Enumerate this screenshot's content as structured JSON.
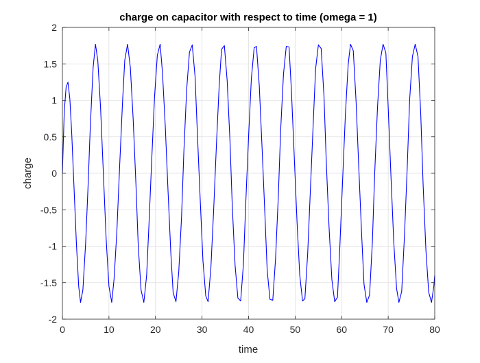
{
  "chart_data": {
    "type": "line",
    "title": "charge on capacitor with respect to time (omega = 1)",
    "xlabel": "time",
    "ylabel": "charge",
    "xlim": [
      0,
      80
    ],
    "ylim": [
      -2,
      2
    ],
    "xticks": [
      0,
      10,
      20,
      30,
      40,
      50,
      60,
      70,
      80
    ],
    "yticks": [
      2,
      1.5,
      1,
      0.5,
      0,
      -0.5,
      -1,
      -1.5,
      -2
    ],
    "xtick_labels": [
      "0",
      "10",
      "20",
      "30",
      "40",
      "50",
      "60",
      "70",
      "80"
    ],
    "ytick_labels": [
      "2",
      "1.5",
      "1",
      "0.5",
      "0",
      "-0.5",
      "-1",
      "-1.5",
      "-2"
    ],
    "grid": true,
    "line_color": "#0000ff",
    "series": [
      {
        "x": [
          0,
          0.4,
          0.8,
          1.2,
          1.6,
          2.0,
          2.5,
          3.0,
          3.5,
          3.9,
          4.4,
          5.0,
          5.5,
          6.0,
          6.6,
          7.1,
          7.6,
          8.2,
          8.8,
          9.4,
          10.0,
          10.6,
          11.1,
          11.7,
          12.3,
          12.9,
          13.4,
          14.0,
          14.6,
          15.2,
          15.8,
          16.3,
          16.9,
          17.5,
          18.1,
          18.6,
          19.2,
          19.8,
          20.4,
          21.0,
          21.5,
          22.1,
          22.7,
          23.3,
          23.8,
          24.4,
          25.0,
          25.6,
          26.1,
          26.7,
          27.3,
          27.9,
          28.5,
          29.0,
          29.6,
          30.2,
          30.8,
          31.3,
          31.9,
          32.5,
          33.1,
          33.7,
          34.2,
          34.8,
          35.4,
          36.0,
          36.5,
          37.1,
          37.7,
          38.3,
          38.9,
          39.4,
          40.0,
          40.6,
          41.2,
          41.7,
          42.3,
          42.9,
          43.5,
          44.0,
          44.6,
          45.2,
          45.8,
          46.4,
          46.9,
          47.5,
          48.1,
          48.7,
          49.2,
          49.8,
          50.4,
          51.0,
          51.6,
          52.1,
          52.7,
          53.3,
          53.9,
          54.4,
          55.0,
          55.6,
          56.2,
          56.7,
          57.3,
          57.9,
          58.5,
          59.1,
          59.6,
          60.2,
          60.8,
          61.4,
          61.9,
          62.5,
          63.1,
          63.7,
          64.3,
          64.8,
          65.4,
          66.0,
          66.6,
          67.1,
          67.7,
          68.3,
          68.9,
          69.5,
          70.0,
          70.6,
          71.2,
          71.8,
          72.3,
          72.9,
          73.5,
          74.1,
          74.6,
          75.2,
          75.8,
          76.4,
          77.0,
          77.5,
          78.1,
          78.7,
          79.3,
          79.8,
          80.0
        ],
        "y": [
          0,
          0.85,
          1.18,
          1.25,
          1.02,
          0.55,
          -0.2,
          -0.95,
          -1.55,
          -1.77,
          -1.6,
          -0.95,
          -0.2,
          0.65,
          1.45,
          1.77,
          1.55,
          0.9,
          0.0,
          -0.9,
          -1.55,
          -1.77,
          -1.45,
          -0.8,
          0.1,
          0.95,
          1.55,
          1.77,
          1.45,
          0.75,
          -0.15,
          -1.0,
          -1.6,
          -1.77,
          -1.4,
          -0.7,
          0.2,
          1.05,
          1.62,
          1.77,
          1.38,
          0.65,
          -0.25,
          -1.1,
          -1.64,
          -1.76,
          -1.35,
          -0.6,
          0.3,
          1.15,
          1.66,
          1.76,
          1.33,
          0.55,
          -0.35,
          -1.2,
          -1.68,
          -1.76,
          -1.3,
          -0.5,
          0.4,
          1.22,
          1.7,
          1.75,
          1.27,
          0.45,
          -0.45,
          -1.26,
          -1.71,
          -1.75,
          -1.24,
          -0.4,
          0.5,
          1.3,
          1.72,
          1.74,
          1.2,
          0.35,
          -0.55,
          -1.33,
          -1.73,
          -1.74,
          -1.17,
          -0.3,
          0.6,
          1.36,
          1.74,
          1.73,
          1.14,
          0.25,
          -0.65,
          -1.4,
          -1.75,
          -1.72,
          -1.1,
          -0.2,
          0.7,
          1.43,
          1.76,
          1.71,
          1.06,
          0.15,
          -0.75,
          -1.46,
          -1.76,
          -1.7,
          -1.02,
          -0.1,
          0.8,
          1.49,
          1.77,
          1.68,
          0.98,
          0.05,
          -0.85,
          -1.52,
          -1.77,
          -1.67,
          -0.94,
          0.0,
          0.9,
          1.55,
          1.77,
          1.65,
          0.9,
          -0.05,
          -0.95,
          -1.58,
          -1.77,
          -1.62,
          -0.85,
          0.1,
          1.0,
          1.6,
          1.77,
          1.6,
          0.8,
          -0.15,
          -1.05,
          -1.63,
          -1.77,
          -1.55,
          -1.4
        ]
      }
    ]
  }
}
